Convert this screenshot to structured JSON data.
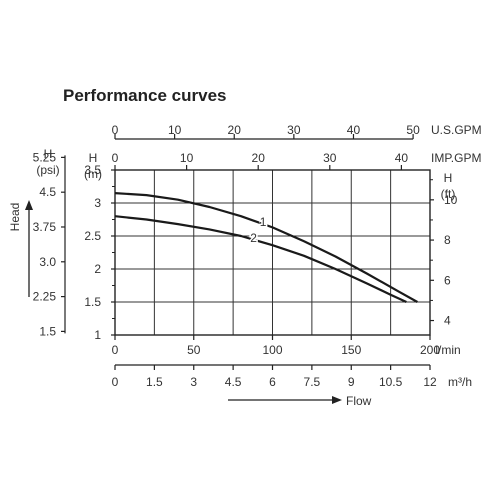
{
  "chart_data": {
    "type": "line",
    "title": "Performance curves",
    "head_label": "Head",
    "flow_label": "Flow",
    "axes": {
      "head_m": {
        "label_top": "H",
        "label_unit": "(m)",
        "ticks": [
          "1",
          "1.5",
          "2",
          "2.5",
          "3",
          "3.5"
        ],
        "tick_values": [
          1,
          1.5,
          2,
          2.5,
          3,
          3.5
        ],
        "ylim": [
          1,
          3.5
        ]
      },
      "head_psi": {
        "label_top": "H",
        "label_unit": "(psi)",
        "ticks": [
          "1.5",
          "2.25",
          "3.0",
          "3.75",
          "4.5",
          "5.25"
        ],
        "tick_values": [
          1.5,
          2.25,
          3.0,
          3.75,
          4.5,
          5.25
        ]
      },
      "head_ft": {
        "label_top": "H",
        "label_unit": "(ft)",
        "ticks": [
          "4",
          "6",
          "8",
          "10"
        ],
        "tick_values": [
          4,
          6,
          8,
          10
        ]
      },
      "flow_lmin": {
        "unit": "l/min",
        "ticks": [
          "0",
          "50",
          "100",
          "150",
          "200"
        ],
        "tick_values": [
          0,
          50,
          100,
          150,
          200
        ],
        "xlim": [
          0,
          200
        ]
      },
      "flow_m3h": {
        "unit": "m³/h",
        "ticks": [
          "0",
          "1.5",
          "3",
          "4.5",
          "6",
          "7.5",
          "9",
          "10.5",
          "12"
        ],
        "tick_values": [
          0,
          1.5,
          3,
          4.5,
          6,
          7.5,
          9,
          10.5,
          12
        ]
      },
      "flow_usgpm": {
        "unit": "U.S.GPM",
        "ticks": [
          "0",
          "10",
          "20",
          "30",
          "40",
          "50"
        ],
        "tick_values": [
          0,
          10,
          20,
          30,
          40,
          50
        ]
      },
      "flow_impgpm": {
        "unit": "IMP.GPM",
        "ticks": [
          "0",
          "10",
          "20",
          "30",
          "40"
        ],
        "tick_values": [
          0,
          10,
          20,
          30,
          40
        ]
      }
    },
    "series": [
      {
        "name": "1",
        "x": [
          0,
          20,
          40,
          60,
          80,
          100,
          120,
          140,
          160,
          180,
          192
        ],
        "y": [
          3.15,
          3.12,
          3.05,
          2.94,
          2.8,
          2.63,
          2.42,
          2.19,
          1.93,
          1.66,
          1.5
        ]
      },
      {
        "name": "2",
        "x": [
          0,
          20,
          40,
          60,
          80,
          100,
          120,
          140,
          160,
          175,
          185
        ],
        "y": [
          2.8,
          2.75,
          2.68,
          2.6,
          2.5,
          2.36,
          2.2,
          2.0,
          1.78,
          1.61,
          1.5
        ]
      }
    ],
    "grid": true
  }
}
